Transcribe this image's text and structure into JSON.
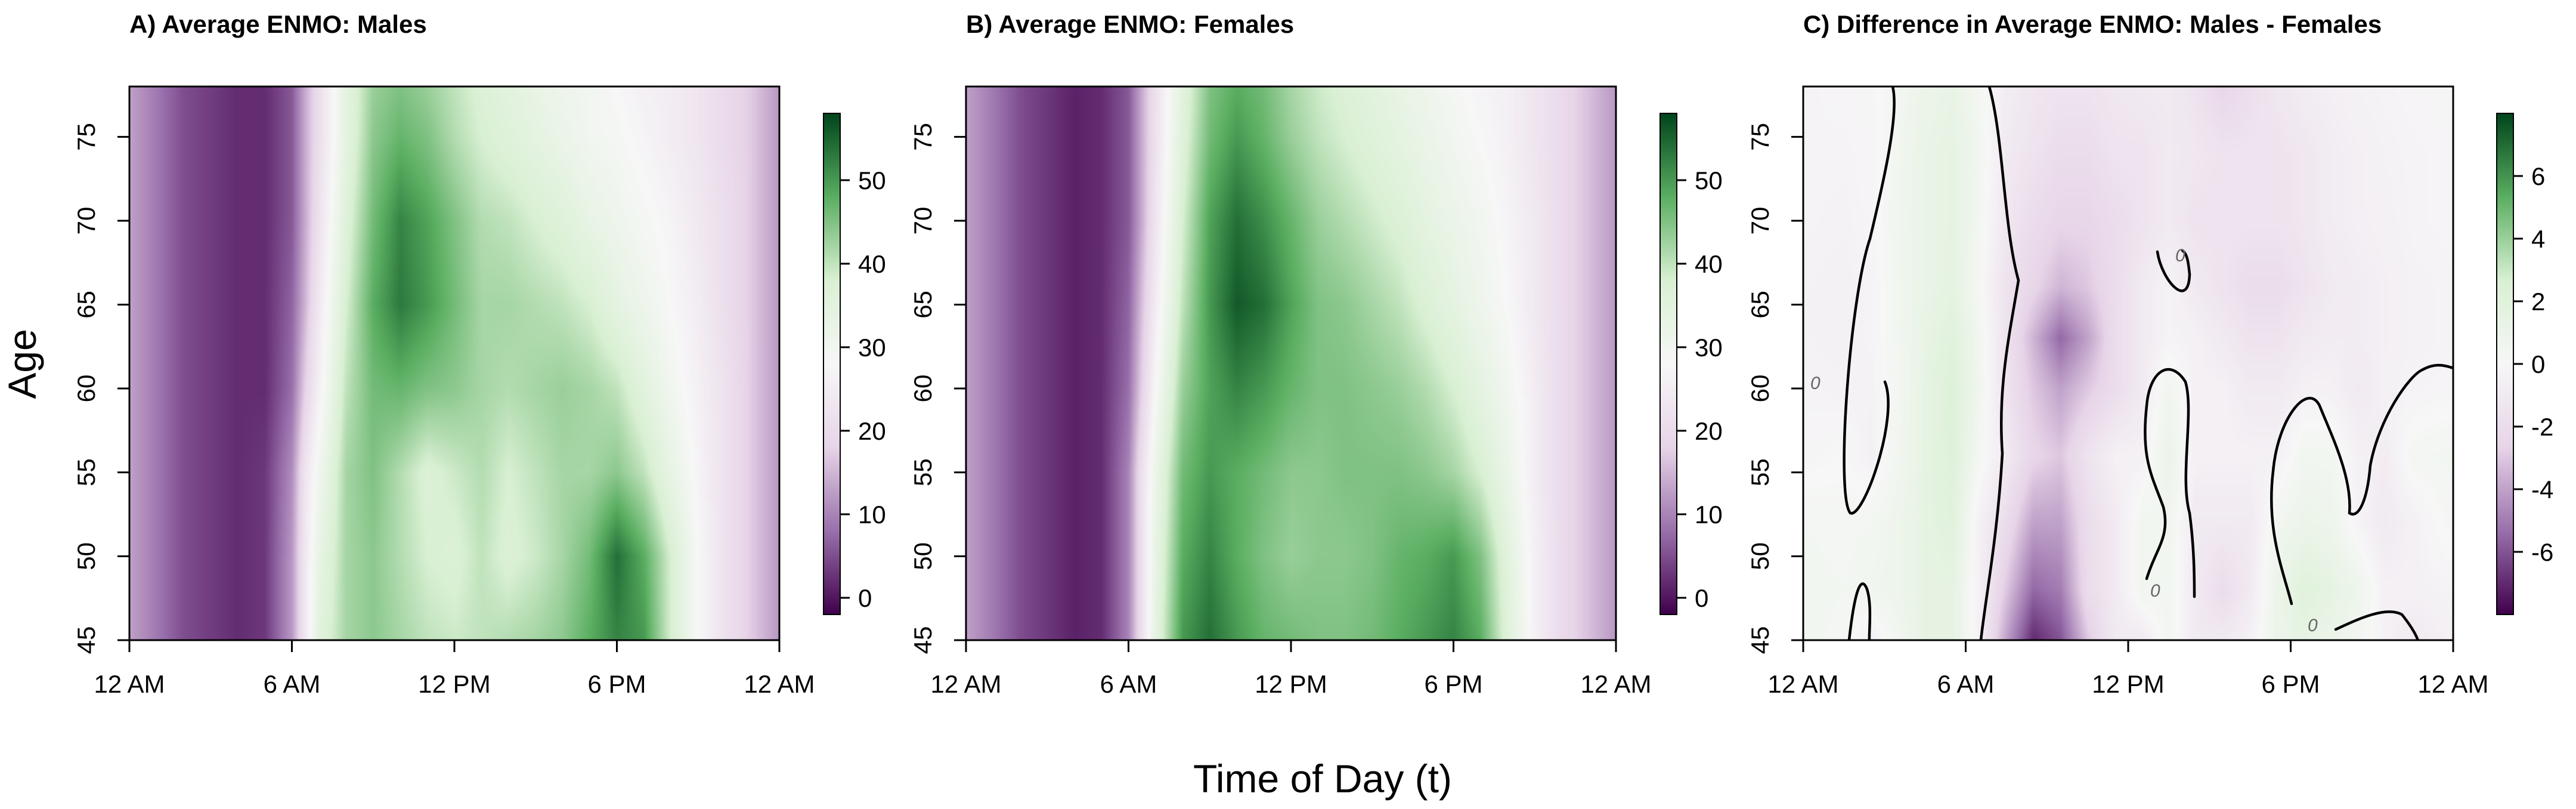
{
  "figure": {
    "xlabel": "Time of Day (t)",
    "ylabel": "Age",
    "colors": {
      "purple_dark": "#40004b",
      "purple_mid": "#9970ab",
      "purple_light": "#e7d4e8",
      "white": "#f7f7f7",
      "green_light": "#d9f0d3",
      "green_mid": "#5aae61",
      "green_dark": "#00441b"
    }
  },
  "chart_data": [
    {
      "type": "heatmap",
      "title": "A) Average ENMO: Males",
      "xlabel": "Time of Day (t)",
      "ylabel": "Age",
      "x_ticks": [
        "12 AM",
        "6 AM",
        "12 PM",
        "6 PM",
        "12 AM"
      ],
      "x_tick_values": [
        0,
        6,
        12,
        18,
        24
      ],
      "xlim": [
        0,
        24
      ],
      "y_ticks": [
        45,
        50,
        55,
        60,
        65,
        70,
        75
      ],
      "ylim": [
        45,
        78
      ],
      "colorbar": {
        "ticks": [
          0,
          10,
          20,
          30,
          40,
          50
        ],
        "range": [
          -2,
          58
        ]
      },
      "surface": {
        "x_hours": [
          0,
          2,
          4,
          5,
          6,
          6.5,
          7,
          8,
          9,
          10,
          11,
          12,
          13,
          14,
          15,
          16,
          17,
          18,
          19,
          20,
          21,
          22,
          23,
          24
        ],
        "ages": [
          45,
          50,
          55,
          60,
          65,
          70,
          75,
          78
        ],
        "values": [
          [
            13,
            5,
            2,
            3,
            12,
            24,
            35,
            42,
            44,
            42,
            40,
            39,
            40,
            41,
            42,
            44,
            48,
            52,
            50,
            38,
            28,
            22,
            17,
            12
          ],
          [
            13,
            5,
            2,
            3,
            12,
            24,
            33,
            42,
            44,
            41,
            38,
            37,
            40,
            37,
            39,
            42,
            46,
            54,
            48,
            38,
            28,
            22,
            17,
            12
          ],
          [
            13,
            5,
            2,
            3,
            11,
            23,
            30,
            42,
            45,
            41,
            37,
            39,
            41,
            38,
            40,
            42,
            42,
            44,
            40,
            33,
            27,
            22,
            17,
            12
          ],
          [
            13,
            5,
            2,
            2,
            8,
            18,
            26,
            40,
            46,
            47,
            45,
            44,
            42,
            41,
            42,
            43,
            42,
            40,
            35,
            30,
            26,
            22,
            17,
            12
          ],
          [
            13,
            5,
            2,
            2,
            7,
            15,
            24,
            38,
            48,
            53,
            50,
            46,
            42,
            42,
            41,
            40,
            38,
            34,
            31,
            28,
            25,
            21,
            17,
            12
          ],
          [
            13,
            5,
            2,
            2,
            6,
            14,
            22,
            36,
            46,
            52,
            49,
            45,
            41,
            40,
            38,
            36,
            33,
            31,
            29,
            27,
            24,
            21,
            17,
            12
          ],
          [
            13,
            5,
            2,
            2,
            6,
            14,
            21,
            34,
            44,
            47,
            45,
            41,
            38,
            36,
            34,
            32,
            30,
            29,
            27,
            25,
            23,
            20,
            17,
            12
          ],
          [
            13,
            5,
            2,
            2,
            6,
            14,
            21,
            34,
            43,
            45,
            43,
            40,
            37,
            35,
            33,
            31,
            30,
            28,
            26,
            25,
            23,
            20,
            17,
            12
          ]
        ]
      }
    },
    {
      "type": "heatmap",
      "title": "B) Average ENMO: Females",
      "xlabel": "Time of Day (t)",
      "ylabel": "Age",
      "x_ticks": [
        "12 AM",
        "6 AM",
        "12 PM",
        "6 PM",
        "12 AM"
      ],
      "x_tick_values": [
        0,
        6,
        12,
        18,
        24
      ],
      "xlim": [
        0,
        24
      ],
      "y_ticks": [
        45,
        50,
        55,
        60,
        65,
        70,
        75
      ],
      "ylim": [
        45,
        78
      ],
      "colorbar": {
        "ticks": [
          0,
          10,
          20,
          30,
          40,
          50
        ],
        "range": [
          -2,
          58
        ]
      },
      "surface": {
        "x_hours": [
          0,
          2,
          4,
          5,
          6,
          6.5,
          7,
          8,
          9,
          10,
          11,
          12,
          13,
          14,
          15,
          16,
          17,
          18,
          19,
          20,
          21,
          22,
          23,
          24
        ],
        "ages": [
          45,
          50,
          55,
          60,
          65,
          70,
          75,
          78
        ],
        "values": [
          [
            13,
            5,
            1,
            2,
            10,
            22,
            34,
            50,
            54,
            50,
            47,
            46,
            45,
            45,
            46,
            48,
            50,
            52,
            48,
            36,
            26,
            20,
            16,
            12
          ],
          [
            13,
            5,
            1,
            2,
            10,
            22,
            33,
            48,
            52,
            48,
            45,
            43,
            44,
            44,
            45,
            47,
            48,
            50,
            45,
            35,
            26,
            20,
            16,
            12
          ],
          [
            13,
            5,
            1,
            2,
            10,
            22,
            32,
            46,
            50,
            48,
            46,
            44,
            44,
            45,
            45,
            45,
            44,
            42,
            38,
            32,
            25,
            20,
            16,
            12
          ],
          [
            13,
            5,
            1,
            2,
            8,
            18,
            28,
            43,
            49,
            52,
            50,
            47,
            45,
            45,
            44,
            43,
            41,
            38,
            34,
            30,
            25,
            20,
            16,
            12
          ],
          [
            13,
            5,
            1,
            2,
            7,
            16,
            25,
            40,
            50,
            56,
            54,
            49,
            45,
            44,
            42,
            40,
            37,
            34,
            31,
            28,
            24,
            20,
            16,
            12
          ],
          [
            13,
            5,
            1,
            2,
            6,
            14,
            23,
            38,
            49,
            54,
            51,
            47,
            43,
            41,
            39,
            37,
            34,
            32,
            30,
            27,
            24,
            20,
            16,
            12
          ],
          [
            13,
            5,
            1,
            2,
            6,
            14,
            22,
            36,
            46,
            50,
            47,
            43,
            40,
            38,
            36,
            34,
            32,
            30,
            28,
            26,
            23,
            20,
            16,
            12
          ],
          [
            13,
            5,
            1,
            2,
            6,
            14,
            22,
            35,
            45,
            48,
            46,
            42,
            39,
            37,
            35,
            33,
            31,
            29,
            27,
            26,
            23,
            20,
            16,
            12
          ]
        ]
      }
    },
    {
      "type": "heatmap",
      "title": "C) Difference in Average ENMO: Males - Females",
      "xlabel": "Time of Day (t)",
      "ylabel": "Age",
      "x_ticks": [
        "12 AM",
        "6 AM",
        "12 PM",
        "6 PM",
        "12 AM"
      ],
      "x_tick_values": [
        0,
        6,
        12,
        18,
        24
      ],
      "xlim": [
        0,
        24
      ],
      "y_ticks": [
        45,
        50,
        55,
        60,
        65,
        70,
        75
      ],
      "ylim": [
        45,
        78
      ],
      "colorbar": {
        "ticks": [
          -6,
          -4,
          -2,
          0,
          2,
          4,
          6
        ],
        "range": [
          -8,
          8
        ]
      },
      "contour_level": 0,
      "contour_labels": [
        "0",
        "0",
        "0",
        "0"
      ],
      "surface": {
        "x_hours": [
          0,
          1.5,
          2.5,
          3.5,
          4.5,
          5.5,
          6.5,
          7.5,
          8.5,
          9.5,
          10.5,
          11.5,
          12.5,
          13.5,
          14.5,
          15.5,
          16.5,
          17.5,
          18.5,
          19.5,
          20.5,
          21.5,
          22.5,
          24
        ],
        "ages": [
          45,
          48,
          52,
          56,
          60,
          63,
          66,
          70,
          74,
          78
        ],
        "values": [
          [
            0.5,
            0.3,
            -0.5,
            0.5,
            1.5,
            1.5,
            -0.5,
            -4,
            -7,
            -6,
            -3,
            -1,
            -1,
            0.5,
            -1,
            -1,
            -0.5,
            1,
            1.5,
            1,
            0.5,
            -0.5,
            -1,
            -0.5
          ],
          [
            0.5,
            0.4,
            0.6,
            0.8,
            1.5,
            1.5,
            -0.5,
            -3,
            -5.5,
            -5,
            -2,
            -1,
            0.5,
            0.5,
            -1,
            -2,
            -1,
            1,
            2,
            1.5,
            0.8,
            -0.5,
            -0.5,
            -0.3
          ],
          [
            0.4,
            0.3,
            0.4,
            0.8,
            1.5,
            2,
            -0.5,
            -2,
            -4,
            -4,
            -2,
            -1,
            0.5,
            0.6,
            -1,
            -1,
            -1,
            0.5,
            1,
            0.8,
            -0.3,
            -1,
            -0.5,
            0.3
          ],
          [
            -0.2,
            0,
            -0.5,
            0.5,
            1.5,
            2.2,
            0.3,
            -1,
            -2.5,
            -3,
            -1.5,
            -0.5,
            -0.5,
            1,
            -0.5,
            -0.5,
            -0.5,
            -0.5,
            0.5,
            0.5,
            -0.5,
            -0.8,
            0.3,
            0.5
          ],
          [
            -0.3,
            -0.4,
            -0.4,
            0.4,
            1.5,
            2.3,
            0.6,
            -1.5,
            -3,
            -4,
            -3,
            -2,
            -1,
            0.6,
            -0.5,
            -0.5,
            -1,
            -1,
            -0.5,
            -0.5,
            -1,
            -0.5,
            -0.3,
            -0.2
          ],
          [
            -0.4,
            -0.5,
            -0.3,
            0.5,
            1.3,
            2,
            0.5,
            -1.5,
            -3.5,
            -5.5,
            -4,
            -2,
            -1,
            -0.3,
            -0.5,
            -1,
            -1.5,
            -1.5,
            -1,
            -0.8,
            -0.8,
            -0.6,
            -0.4,
            -0.3
          ],
          [
            -0.4,
            -0.5,
            -0.3,
            0.5,
            1.2,
            1.6,
            0.2,
            -1.5,
            -2.5,
            -3.5,
            -3,
            -2,
            -1,
            -0.3,
            -1,
            -1.5,
            -2,
            -2,
            -1.5,
            -1,
            -0.8,
            -0.6,
            -0.4,
            -0.3
          ],
          [
            -0.3,
            -0.4,
            -0.2,
            0.6,
            1.2,
            1.5,
            0.4,
            -1.2,
            -2,
            -2.5,
            -2.5,
            -2,
            -1.5,
            -1,
            -1.5,
            -1.5,
            -1.5,
            -1.5,
            -1.2,
            -0.8,
            -0.6,
            -0.5,
            -0.3,
            -0.2
          ],
          [
            -0.3,
            -0.3,
            -0.2,
            0.5,
            1.2,
            1.5,
            0.5,
            -1,
            -1.5,
            -2,
            -2,
            -1.5,
            -1.5,
            -1,
            -1.2,
            -1.5,
            -1.5,
            -1.5,
            -1.2,
            -0.8,
            -0.6,
            -0.4,
            -0.3,
            -0.2
          ],
          [
            -0.3,
            -0.2,
            -0.1,
            0.4,
            1.0,
            1.3,
            0.3,
            -0.8,
            -1.2,
            -1.5,
            -1.5,
            -1.2,
            -1,
            -1,
            -1.5,
            -2.5,
            -1.8,
            -1.2,
            -0.8,
            -0.6,
            -0.4,
            -0.3,
            -0.2,
            -0.1
          ]
        ]
      }
    }
  ]
}
